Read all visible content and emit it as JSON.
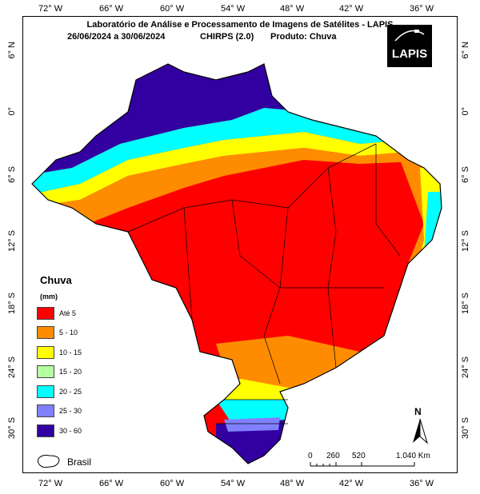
{
  "header": {
    "title": "Laboratório de Análise e Processamento de Imagens de Satélites - LAPIS",
    "period": "26/06/2024  a 30/06/2024",
    "dataset": "CHIRPS (2.0)",
    "product": "Produto: Chuva"
  },
  "logo": {
    "text": "LAPIS"
  },
  "axes": {
    "longitudes": [
      "72° W",
      "66° W",
      "60° W",
      "54° W",
      "48° W",
      "42° W",
      "36° W"
    ],
    "latitudes": [
      "6° N",
      "0°",
      "6° S",
      "12° S",
      "18° S",
      "24° S",
      "30° S"
    ]
  },
  "legend": {
    "title": "Chuva",
    "unit": "(mm)",
    "classes": [
      {
        "label": "Até 5",
        "color": "#ff0000"
      },
      {
        "label": "5 - 10",
        "color": "#ff8c00"
      },
      {
        "label": "10 - 15",
        "color": "#ffff00"
      },
      {
        "label": "15 - 20",
        "color": "#b4ffa0"
      },
      {
        "label": "20 - 25",
        "color": "#00ffff"
      },
      {
        "label": "25 - 30",
        "color": "#8080ff"
      },
      {
        "label": "30 - 60",
        "color": "#3200a0"
      }
    ],
    "boundary_label": "Brasil"
  },
  "scale_bar": {
    "labels": [
      "0",
      "260",
      "520",
      "1.040 Km"
    ]
  },
  "north_arrow": {
    "label": "N"
  }
}
